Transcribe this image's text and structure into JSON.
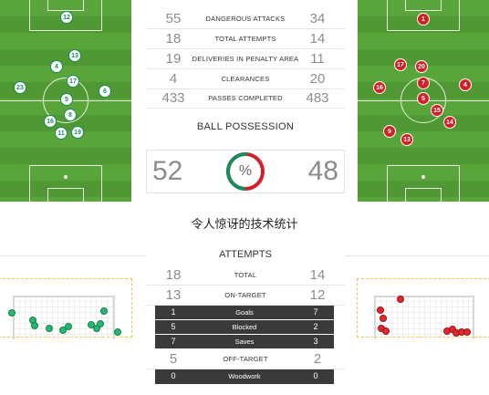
{
  "colors": {
    "home": "#1a8c5c",
    "away": "#d32028",
    "pitch": "#5aa53a",
    "dark_row": "#3a3a3a"
  },
  "stats": [
    {
      "left": "55",
      "label": "DANGEROUS ATTACKS",
      "right": "34"
    },
    {
      "left": "18",
      "label": "TOTAL ATTEMPTS",
      "right": "14"
    },
    {
      "left": "19",
      "label": "DELIVERIES IN PENALTY AREA",
      "right": "11"
    },
    {
      "left": "4",
      "label": "CLEARANCES",
      "right": "20"
    },
    {
      "left": "433",
      "label": "PASSES COMPLETED",
      "right": "483"
    }
  ],
  "possession": {
    "title": "BALL POSSESSION",
    "left": "52",
    "right": "48",
    "symbol": "%",
    "left_fraction": 0.52
  },
  "home_players": [
    {
      "num": "12"
    },
    {
      "num": "13"
    },
    {
      "num": "4"
    },
    {
      "num": "17"
    },
    {
      "num": "23"
    },
    {
      "num": "6"
    },
    {
      "num": "5"
    },
    {
      "num": "8"
    },
    {
      "num": "16"
    },
    {
      "num": "11"
    },
    {
      "num": "19"
    }
  ],
  "away_players": [
    {
      "num": "1"
    },
    {
      "num": "17"
    },
    {
      "num": "20"
    },
    {
      "num": "16"
    },
    {
      "num": "7"
    },
    {
      "num": "4"
    },
    {
      "num": "5"
    },
    {
      "num": "15"
    },
    {
      "num": "14"
    },
    {
      "num": "9"
    },
    {
      "num": "13"
    }
  ],
  "caption": "令人惊讶的技术统计",
  "attempts": {
    "title": "ATTEMPTS",
    "rows": [
      {
        "left": "18",
        "label": "TOTAL",
        "right": "14"
      },
      {
        "left": "13",
        "label": "ON-TARGET",
        "right": "12"
      }
    ],
    "dark_rows": [
      {
        "left": "1",
        "label": "Goals",
        "right": "7"
      },
      {
        "left": "5",
        "label": "Blocked",
        "right": "2"
      },
      {
        "left": "7",
        "label": "Saves",
        "right": "3"
      }
    ],
    "rows2": [
      {
        "left": "5",
        "label": "OFF-TARGET",
        "right": "2"
      },
      {
        "left": "0",
        "label": "Woodwork",
        "right": "0"
      }
    ]
  }
}
